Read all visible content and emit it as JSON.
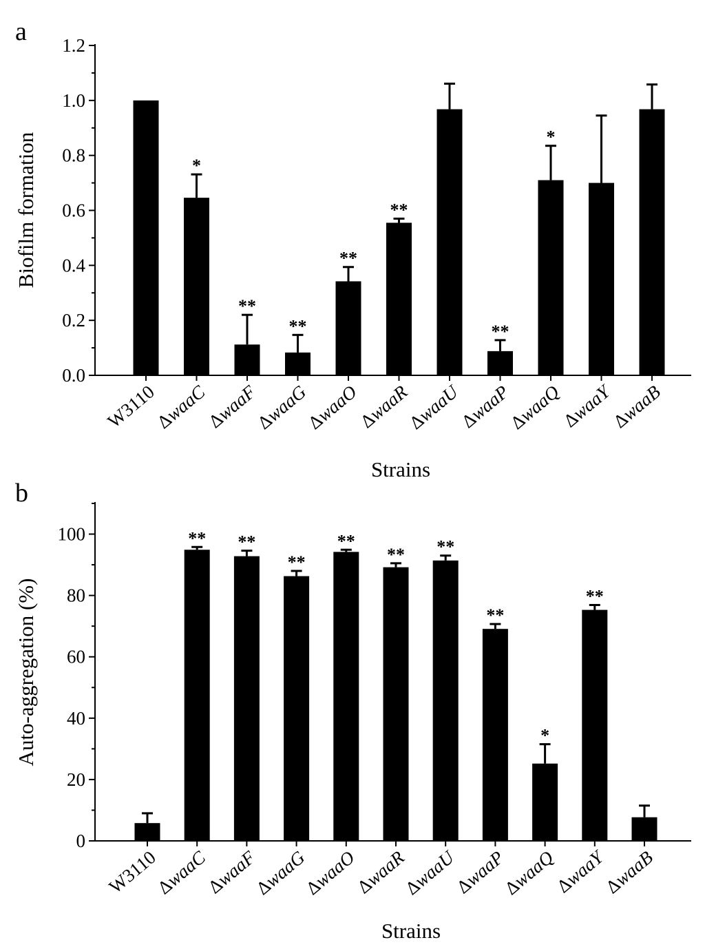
{
  "chart_data": [
    {
      "type": "bar",
      "panel_label": "a",
      "xlabel": "Strains",
      "ylabel": "Biofilm formation",
      "ylim": [
        0,
        1.2
      ],
      "yticks": [
        "0.0",
        "0.2",
        "0.4",
        "0.6",
        "0.8",
        "1.0",
        "1.2"
      ],
      "grid": false,
      "bar_color": "#000000",
      "categories": [
        {
          "prefix": "",
          "gene": "W3110"
        },
        {
          "prefix": "Δ",
          "gene": "waaC"
        },
        {
          "prefix": "Δ",
          "gene": "waaF"
        },
        {
          "prefix": "Δ",
          "gene": "waaG"
        },
        {
          "prefix": "Δ",
          "gene": "waaO"
        },
        {
          "prefix": "Δ",
          "gene": "waaR"
        },
        {
          "prefix": "Δ",
          "gene": "waaU"
        },
        {
          "prefix": "Δ",
          "gene": "waaP"
        },
        {
          "prefix": "Δ",
          "gene": "waaQ"
        },
        {
          "prefix": "Δ",
          "gene": "waaY"
        },
        {
          "prefix": "Δ",
          "gene": "waaB"
        }
      ],
      "values": [
        1.0,
        0.646,
        0.112,
        0.083,
        0.342,
        0.555,
        0.968,
        0.088,
        0.71,
        0.7,
        0.968
      ],
      "errors": [
        0.0,
        0.085,
        0.108,
        0.064,
        0.052,
        0.015,
        0.093,
        0.04,
        0.125,
        0.245,
        0.09
      ],
      "significance": [
        "",
        "*",
        "**",
        "**",
        "**",
        "**",
        "",
        "**",
        "*",
        "",
        ""
      ]
    },
    {
      "type": "bar",
      "panel_label": "b",
      "xlabel": "Strains",
      "ylabel": "Auto-aggregation (%)",
      "ylim": [
        0,
        110
      ],
      "yticks": [
        "0",
        "20",
        "40",
        "60",
        "80",
        "100"
      ],
      "grid": false,
      "bar_color": "#000000",
      "categories": [
        {
          "prefix": "",
          "gene": "W3110"
        },
        {
          "prefix": "Δ",
          "gene": "waaC"
        },
        {
          "prefix": "Δ",
          "gene": "waaF"
        },
        {
          "prefix": "Δ",
          "gene": "waaG"
        },
        {
          "prefix": "Δ",
          "gene": "waaO"
        },
        {
          "prefix": "Δ",
          "gene": "waaR"
        },
        {
          "prefix": "Δ",
          "gene": "waaU"
        },
        {
          "prefix": "Δ",
          "gene": "waaP"
        },
        {
          "prefix": "Δ",
          "gene": "waaQ"
        },
        {
          "prefix": "Δ",
          "gene": "waaY"
        },
        {
          "prefix": "Δ",
          "gene": "waaB"
        }
      ],
      "values": [
        5.8,
        94.9,
        92.8,
        86.3,
        94.2,
        89.2,
        91.4,
        69.1,
        25.2,
        75.3,
        7.7
      ],
      "errors": [
        3.2,
        0.9,
        1.8,
        1.7,
        0.7,
        1.3,
        1.6,
        1.6,
        6.3,
        1.6,
        3.8
      ],
      "significance": [
        "",
        "**",
        "**",
        "**",
        "**",
        "**",
        "**",
        "**",
        "*",
        "**",
        ""
      ]
    }
  ]
}
